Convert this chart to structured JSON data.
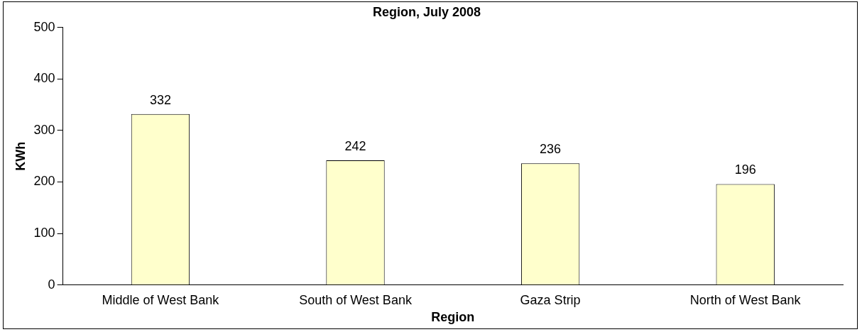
{
  "chart_data": {
    "type": "bar",
    "title": "Region, July 2008",
    "xlabel": "Region",
    "ylabel": "KWh",
    "categories": [
      "Middle of West Bank",
      "South of West Bank",
      "Gaza Strip",
      "North of West Bank"
    ],
    "values": [
      332,
      242,
      236,
      196
    ],
    "color": "#ffffcc",
    "ylim": [
      0,
      500
    ],
    "yticks": [
      0,
      100,
      200,
      300,
      400,
      500
    ],
    "grid": false,
    "legend": false,
    "data_labels": true
  }
}
